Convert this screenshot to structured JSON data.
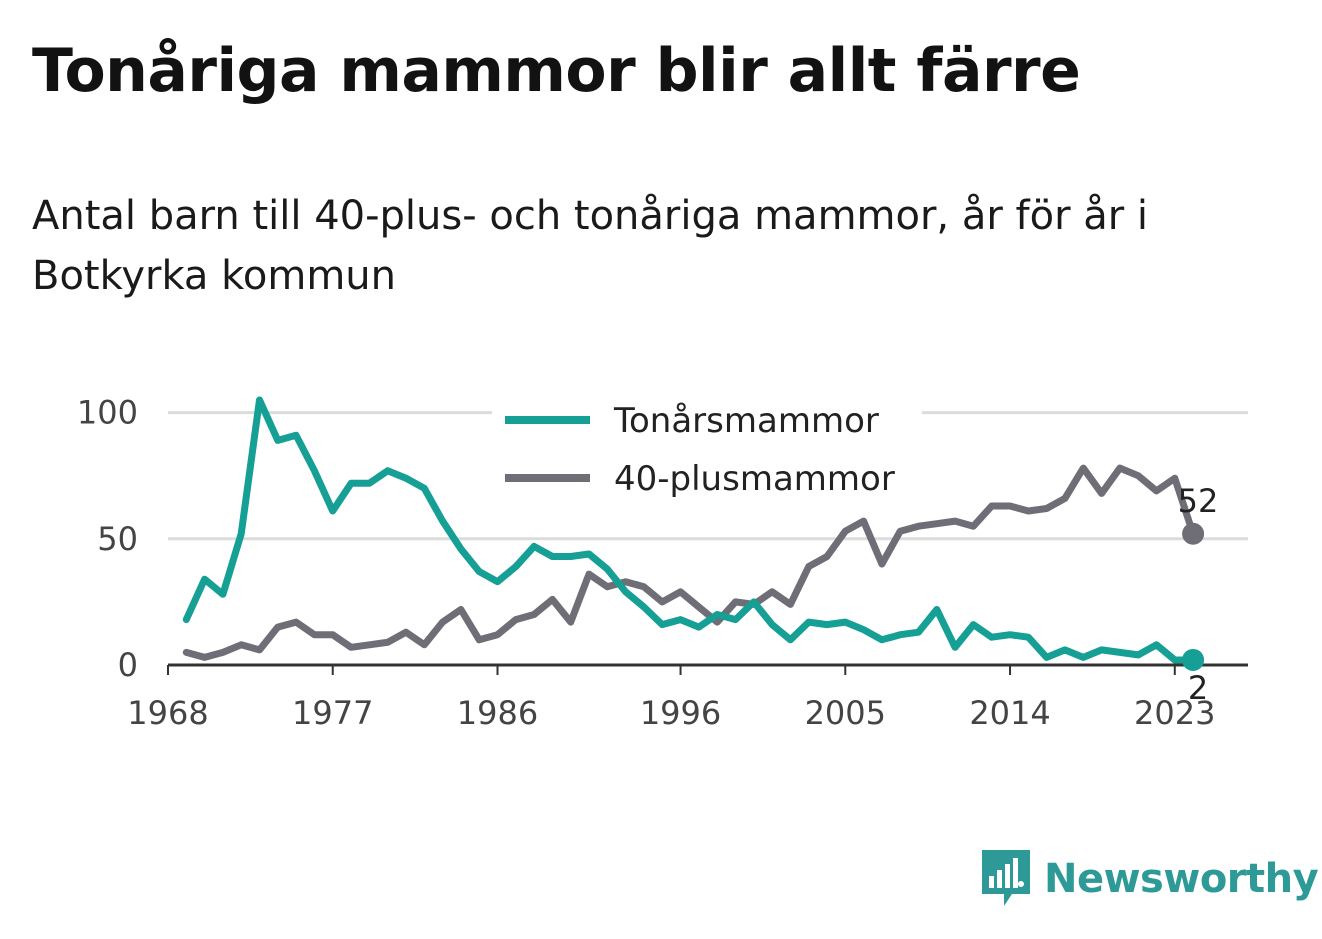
{
  "title": "Tonåriga mammor blir allt färre",
  "subtitle": "Antal barn till 40-plus- och tonåriga mammor, år för år i Botkyrka kommun",
  "brand": {
    "name": "Newsworthy"
  },
  "colors": {
    "teen": "#169f94",
    "forty": "#6f6e76",
    "grid": "#dcdcdc",
    "axis": "#333333",
    "brand": "#2e9a97"
  },
  "chart_data": {
    "type": "line",
    "x": [
      1969,
      1970,
      1971,
      1972,
      1973,
      1974,
      1975,
      1976,
      1977,
      1978,
      1979,
      1980,
      1981,
      1982,
      1983,
      1984,
      1985,
      1986,
      1987,
      1988,
      1989,
      1990,
      1991,
      1992,
      1993,
      1994,
      1995,
      1996,
      1997,
      1998,
      1999,
      2000,
      2001,
      2002,
      2003,
      2004,
      2005,
      2006,
      2007,
      2008,
      2009,
      2010,
      2011,
      2012,
      2013,
      2014,
      2015,
      2016,
      2017,
      2018,
      2019,
      2020,
      2021,
      2022,
      2023,
      2024
    ],
    "series": [
      {
        "name": "Tonårsmammor",
        "color": "#169f94",
        "values": [
          18,
          34,
          28,
          52,
          105,
          89,
          91,
          77,
          61,
          72,
          72,
          77,
          74,
          70,
          57,
          46,
          37,
          33,
          39,
          47,
          43,
          43,
          44,
          38,
          29,
          23,
          16,
          18,
          15,
          20,
          18,
          25,
          16,
          10,
          17,
          16,
          17,
          14,
          10,
          12,
          13,
          22,
          7,
          16,
          11,
          12,
          11,
          3,
          6,
          3,
          6,
          5,
          4,
          8,
          2,
          2
        ]
      },
      {
        "name": "40-plusmammor",
        "color": "#6f6e76",
        "values": [
          5,
          3,
          5,
          8,
          6,
          15,
          17,
          12,
          12,
          7,
          8,
          9,
          13,
          8,
          17,
          22,
          10,
          12,
          18,
          20,
          26,
          17,
          36,
          31,
          33,
          31,
          25,
          29,
          23,
          17,
          25,
          24,
          29,
          24,
          39,
          43,
          53,
          57,
          40,
          53,
          55,
          56,
          57,
          55,
          63,
          63,
          61,
          62,
          66,
          78,
          68,
          78,
          75,
          69,
          74,
          52
        ]
      }
    ],
    "x_ticks": [
      1968,
      1977,
      1986,
      1996,
      2005,
      2014,
      2023
    ],
    "y_ticks": [
      0,
      50,
      100
    ],
    "xlim": [
      1968,
      2027
    ],
    "ylim": [
      0,
      105
    ],
    "end_labels": {
      "teen": "2",
      "forty": "52"
    },
    "legend_position": "top-center",
    "grid": "horizontal"
  }
}
